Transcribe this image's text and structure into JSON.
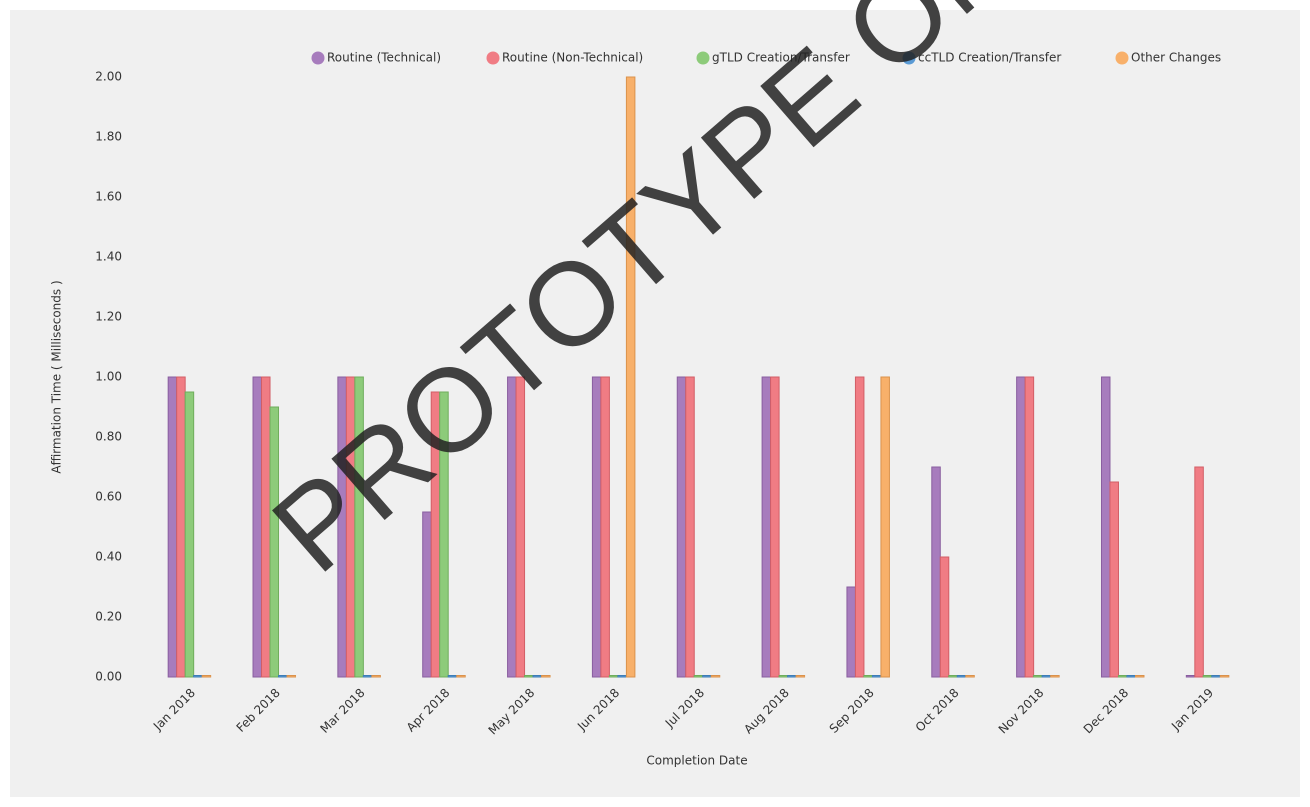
{
  "chart_data": {
    "type": "bar",
    "watermark": "PROTOTYPE ONLY",
    "x_label": "Completion Date",
    "y_label": "Affirmation Time ( Milliseconds )",
    "categories": [
      "Jan 2018",
      "Feb 2018",
      "Mar 2018",
      "Apr 2018",
      "May 2018",
      "Jun 2018",
      "Jul 2018",
      "Aug 2018",
      "Sep 2018",
      "Oct 2018",
      "Nov 2018",
      "Dec 2018",
      "Jan 2019"
    ],
    "series": [
      {
        "name": "Routine (Technical)",
        "color": "#a77cbd",
        "values": [
          1,
          1,
          1,
          0.55,
          1,
          1,
          1,
          1,
          0.3,
          0.7,
          1,
          1,
          0
        ]
      },
      {
        "name": "Routine (Non-Technical)",
        "color": "#f07c84",
        "values": [
          1,
          1,
          1,
          0.95,
          1,
          1,
          1,
          1,
          1,
          0.4,
          1,
          0.65,
          0.7
        ]
      },
      {
        "name": "gTLD Creation/Transfer",
        "color": "#8dcb7a",
        "values": [
          0.95,
          0.9,
          1,
          0.95,
          0,
          0,
          0,
          0,
          0,
          0,
          0,
          0,
          0
        ]
      },
      {
        "name": "ccTLD Creation/Transfer",
        "color": "#5b9bd5",
        "values": [
          0,
          0,
          0,
          0,
          0,
          0,
          0,
          0,
          0,
          0,
          0,
          0,
          0
        ]
      },
      {
        "name": "Other Changes",
        "color": "#f8b06a",
        "values": [
          0,
          0,
          0,
          0,
          0,
          2,
          0,
          0,
          1,
          0,
          0,
          0,
          0
        ]
      }
    ],
    "ylim": [
      0,
      2
    ],
    "yticks": [
      {
        "value": 0,
        "label": "0.00"
      },
      {
        "value": 0.2,
        "label": "0.20"
      },
      {
        "value": 0.4,
        "label": "0.40"
      },
      {
        "value": 0.6,
        "label": "0.60"
      },
      {
        "value": 0.8,
        "label": "0.80"
      },
      {
        "value": 1,
        "label": "1.00"
      },
      {
        "value": 1.2,
        "label": "1.20"
      },
      {
        "value": 1.4,
        "label": "1.40"
      },
      {
        "value": 1.6,
        "label": "1.60"
      },
      {
        "value": 1.8,
        "label": "1.80"
      },
      {
        "value": 2,
        "label": "2.00"
      }
    ],
    "grid": false,
    "legend": "top"
  }
}
